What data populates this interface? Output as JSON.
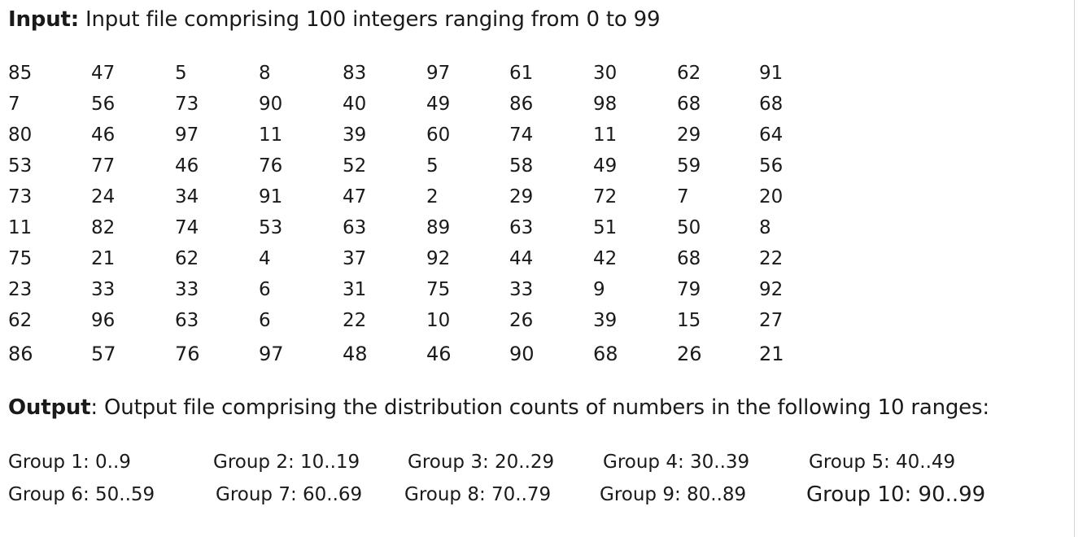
{
  "input": {
    "heading": "Input:",
    "text": "Input file comprising 100 integers ranging from 0 to 99"
  },
  "numbers": [
    [
      "85",
      "47",
      "5",
      "8",
      "83",
      "97",
      "61",
      "30",
      "62",
      "91"
    ],
    [
      "7",
      "56",
      "73",
      "90",
      "40",
      "49",
      "86",
      "98",
      "68",
      "68"
    ],
    [
      "80",
      "46",
      "97",
      "11",
      "39",
      "60",
      "74",
      "11",
      "29",
      "64"
    ],
    [
      "53",
      "77",
      "46",
      "76",
      "52",
      "5",
      "58",
      "49",
      "59",
      "56"
    ],
    [
      "73",
      "24",
      "34",
      "91",
      "47",
      "2",
      "29",
      "72",
      "7",
      "20"
    ],
    [
      "11",
      "82",
      "74",
      "53",
      "63",
      "89",
      "63",
      "51",
      "50",
      "8"
    ],
    [
      "75",
      "21",
      "62",
      "4",
      "37",
      "92",
      "44",
      "42",
      "68",
      "22"
    ],
    [
      "23",
      "33",
      "33",
      "6",
      "31",
      "75",
      "33",
      "9",
      "79",
      "92"
    ],
    [
      "62",
      "96",
      "63",
      "6",
      "22",
      "10",
      "26",
      "39",
      "15",
      "27"
    ],
    [
      "86",
      "57",
      "76",
      "97",
      "48",
      "46",
      "90",
      "68",
      "26",
      "21"
    ]
  ],
  "output": {
    "heading": "Output",
    "text": ": Output file comprising the distribution counts of numbers in the following 10 ranges:"
  },
  "groups": [
    "Group 1: 0..9",
    "Group 2: 10..19",
    "Group 3: 20..29",
    "Group 4: 30..39",
    "Group 5: 40..49",
    "Group 6: 50..59",
    "Group 7: 60..69",
    "Group 8: 70..79",
    "Group 9: 80..89",
    "Group 10: 90..99"
  ]
}
